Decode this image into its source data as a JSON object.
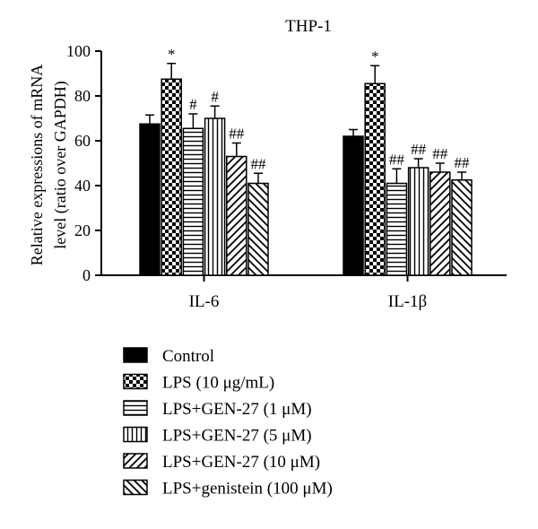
{
  "chart_data": {
    "type": "bar",
    "title": "THP-1",
    "ylabel_line1": "Relative expressions of mRNA",
    "ylabel_line2": "level (ratio over GAPDH)",
    "xlabel": "",
    "ylim": [
      0,
      100
    ],
    "yticks": [
      "0",
      "20",
      "40",
      "60",
      "80",
      "100"
    ],
    "categories": [
      "IL-6",
      "IL-1β"
    ],
    "series": [
      {
        "name": "Control",
        "pattern": "solid",
        "values": [
          67.5,
          62
        ],
        "errors": [
          4,
          3
        ],
        "labels": [
          "",
          ""
        ]
      },
      {
        "name": "LPS (10 μg/mL)",
        "pattern": "checker",
        "values": [
          87.5,
          85.5
        ],
        "errors": [
          7,
          8
        ],
        "labels": [
          "*",
          "*"
        ]
      },
      {
        "name": "LPS+GEN-27 (1 μM)",
        "pattern": "hlines",
        "values": [
          65.5,
          41
        ],
        "errors": [
          6.5,
          6.5
        ],
        "labels": [
          "#",
          "##"
        ]
      },
      {
        "name": "LPS+GEN-27 (5 μM)",
        "pattern": "vlines",
        "values": [
          70,
          48
        ],
        "errors": [
          5.5,
          4
        ],
        "labels": [
          "#",
          "##"
        ]
      },
      {
        "name": "LPS+GEN-27 (10 μM)",
        "pattern": "diag",
        "values": [
          53,
          46
        ],
        "errors": [
          6,
          4
        ],
        "labels": [
          "##",
          "##"
        ]
      },
      {
        "name": "LPS+genistein (100 μM)",
        "pattern": "antidiag",
        "values": [
          41,
          42.5
        ],
        "errors": [
          4.5,
          3.5
        ],
        "labels": [
          "##",
          "##"
        ]
      }
    ],
    "legend_placement": "bottom-left"
  }
}
